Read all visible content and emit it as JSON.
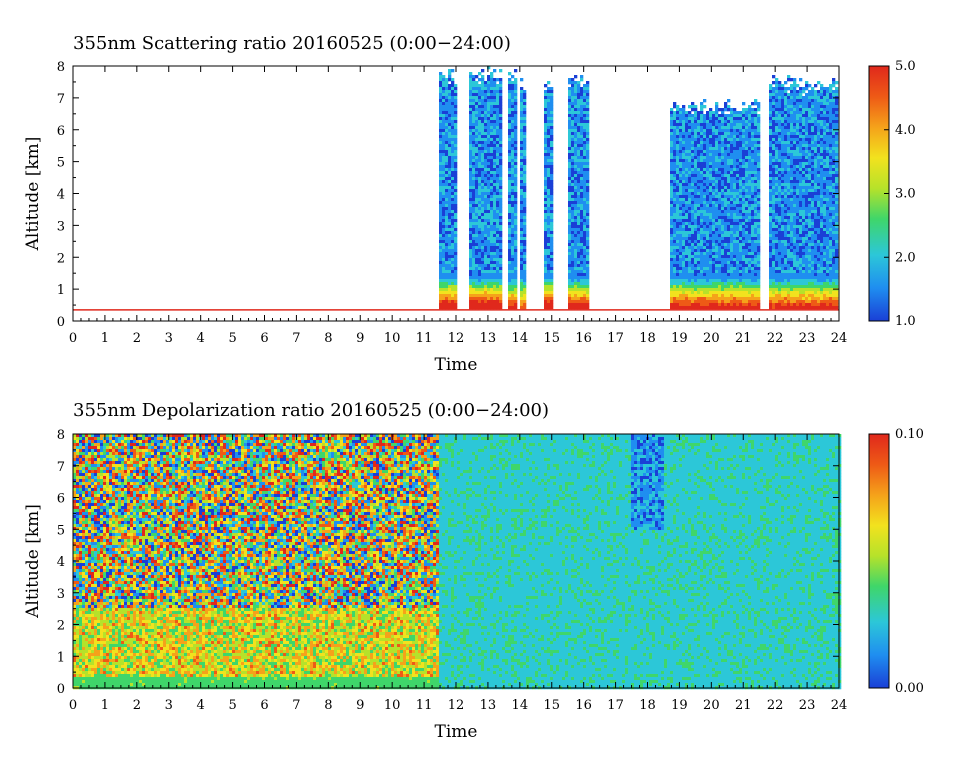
{
  "chart_data": [
    {
      "type": "heatmap",
      "title": "355nm Scattering ratio  20160525 (0:00−24:00)",
      "xlabel": "Time",
      "ylabel": "Altitude [km]",
      "xlim": [
        0,
        24
      ],
      "ylim": [
        0,
        8
      ],
      "x_ticks": [
        "0",
        "1",
        "2",
        "3",
        "4",
        "5",
        "6",
        "7",
        "8",
        "9",
        "10",
        "11",
        "12",
        "13",
        "14",
        "15",
        "16",
        "17",
        "18",
        "19",
        "20",
        "21",
        "22",
        "23",
        "24"
      ],
      "y_ticks": [
        "0",
        "1",
        "2",
        "3",
        "4",
        "5",
        "6",
        "7",
        "8"
      ],
      "colorbar": {
        "min": 1.0,
        "max": 5.0,
        "tick_labels": [
          "5.0",
          "4.0",
          "3.0",
          "2.0",
          "1.0"
        ]
      },
      "colormap": [
        "#1a3fd6",
        "#1f8ef0",
        "#2cc7d8",
        "#3fd66a",
        "#b6e22a",
        "#f2e21e",
        "#f5a21a",
        "#ee5a16",
        "#e0281c"
      ],
      "cloud_regions": [
        {
          "t0": 11.5,
          "t1": 12.05,
          "h_top": 8.0,
          "base_value": 4.6
        },
        {
          "t0": 12.4,
          "t1": 13.4,
          "h_top": 8.0,
          "base_value": 4.7
        },
        {
          "t0": 13.6,
          "t1": 13.9,
          "h_top": 8.0,
          "base_value": 4.2
        },
        {
          "t0": 14.05,
          "t1": 14.2,
          "h_top": 7.7,
          "base_value": 3.8
        },
        {
          "t0": 14.8,
          "t1": 15.05,
          "h_top": 7.8,
          "base_value": 4.8
        },
        {
          "t0": 15.5,
          "t1": 16.2,
          "h_top": 7.8,
          "base_value": 4.5
        },
        {
          "t0": 18.7,
          "t1": 21.5,
          "h_top": 7.0,
          "base_value": 4.3
        },
        {
          "t0": 21.8,
          "t1": 23.95,
          "h_top": 7.7,
          "base_value": 4.2
        }
      ],
      "boundary_layer_top_km": 0.35
    },
    {
      "type": "heatmap",
      "title": "355nm Depolarization ratio  20160525 (0:00−24:00)",
      "xlabel": "Time",
      "ylabel": "Altitude [km]",
      "xlim": [
        0,
        24
      ],
      "ylim": [
        0,
        8
      ],
      "x_ticks": [
        "0",
        "1",
        "2",
        "3",
        "4",
        "5",
        "6",
        "7",
        "8",
        "9",
        "10",
        "11",
        "12",
        "13",
        "14",
        "15",
        "16",
        "17",
        "18",
        "19",
        "20",
        "21",
        "22",
        "23",
        "24"
      ],
      "y_ticks": [
        "0",
        "1",
        "2",
        "3",
        "4",
        "5",
        "6",
        "7",
        "8"
      ],
      "colorbar": {
        "min": 0.0,
        "max": 0.1,
        "tick_labels": [
          "0.10",
          "0.00"
        ]
      },
      "colormap": [
        "#1a3fd6",
        "#1f8ef0",
        "#2cc7d8",
        "#3fd66a",
        "#b6e22a",
        "#f2e21e",
        "#f5a21a",
        "#ee5a16",
        "#e0281c"
      ],
      "noisy_period_hours": [
        0,
        11.5
      ],
      "background_value_after_noon": 0.03
    }
  ]
}
